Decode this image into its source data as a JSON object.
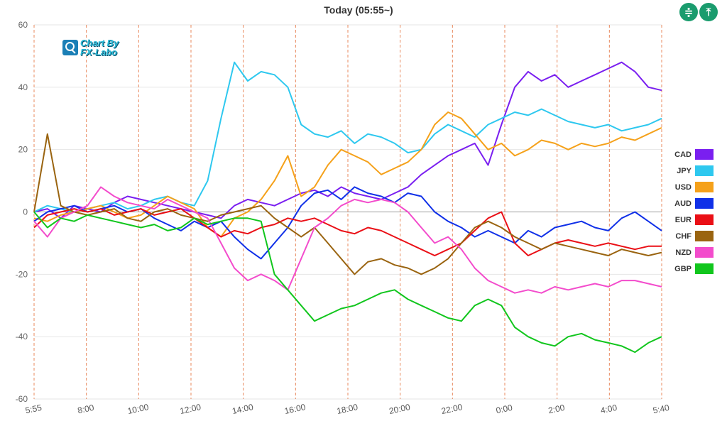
{
  "header": {
    "title": "Today  (05:55~)"
  },
  "logo": {
    "line1": "Chart By",
    "line2": "FX-Labo"
  },
  "toolbar": {
    "compress_icon": "compress-vertical-icon",
    "expand_icon": "expand-vertical-icon",
    "compress_glyph": "≑",
    "expand_glyph": "⤒"
  },
  "chart_data": {
    "type": "line",
    "ylim": [
      -60,
      60
    ],
    "yticks": [
      60,
      40,
      20,
      0,
      -20,
      -40,
      -60
    ],
    "xticks": [
      "5:55",
      "8:00",
      "10:00",
      "12:00",
      "14:00",
      "16:00",
      "18:00",
      "20:00",
      "22:00",
      "0:00",
      "2:00",
      "4:00",
      "5:40"
    ],
    "x": [
      "5:55",
      "6:30",
      "7:00",
      "7:30",
      "8:00",
      "8:30",
      "9:00",
      "9:30",
      "10:00",
      "10:30",
      "11:00",
      "11:30",
      "12:00",
      "12:30",
      "13:00",
      "13:30",
      "14:00",
      "14:30",
      "15:00",
      "15:30",
      "16:00",
      "16:30",
      "17:00",
      "17:30",
      "18:00",
      "18:30",
      "19:00",
      "19:30",
      "20:00",
      "20:30",
      "21:00",
      "21:30",
      "22:00",
      "22:30",
      "23:00",
      "23:30",
      "0:00",
      "0:30",
      "1:00",
      "1:30",
      "2:00",
      "2:30",
      "3:00",
      "3:30",
      "4:00",
      "4:30",
      "5:00",
      "5:40"
    ],
    "grid": "vertical-dashed",
    "legend": "right",
    "series": [
      {
        "name": "CAD",
        "color": "#7a1ff0",
        "values": [
          0,
          1,
          -2,
          2,
          1,
          0,
          3,
          5,
          4,
          3,
          2,
          1,
          0,
          -1,
          -2,
          2,
          4,
          3,
          2,
          4,
          6,
          7,
          5,
          8,
          6,
          5,
          4,
          6,
          8,
          12,
          15,
          18,
          20,
          22,
          15,
          28,
          40,
          45,
          42,
          44,
          40,
          42,
          44,
          46,
          48,
          45,
          40,
          39
        ]
      },
      {
        "name": "JPY",
        "color": "#2ec8ef",
        "values": [
          0,
          2,
          1,
          0,
          1,
          2,
          3,
          1,
          2,
          4,
          5,
          3,
          2,
          10,
          30,
          48,
          42,
          45,
          44,
          40,
          28,
          25,
          24,
          26,
          22,
          25,
          24,
          22,
          19,
          20,
          25,
          28,
          26,
          24,
          28,
          30,
          32,
          31,
          33,
          31,
          29,
          28,
          27,
          28,
          26,
          27,
          28,
          30
        ]
      },
      {
        "name": "USD",
        "color": "#f5a11a",
        "values": [
          -2,
          -3,
          -1,
          0,
          1,
          2,
          0,
          -2,
          -1,
          2,
          5,
          3,
          1,
          -5,
          -8,
          -2,
          0,
          4,
          10,
          18,
          5,
          8,
          15,
          20,
          18,
          16,
          12,
          14,
          16,
          20,
          28,
          32,
          30,
          25,
          20,
          22,
          18,
          20,
          23,
          22,
          20,
          22,
          21,
          22,
          24,
          23,
          25,
          27
        ]
      },
      {
        "name": "AUD",
        "color": "#1030e8",
        "values": [
          -3,
          0,
          1,
          2,
          0,
          1,
          2,
          0,
          1,
          -2,
          -4,
          -6,
          -3,
          -5,
          -3,
          -8,
          -12,
          -15,
          -10,
          -5,
          2,
          6,
          7,
          4,
          8,
          6,
          5,
          3,
          6,
          5,
          0,
          -3,
          -5,
          -8,
          -6,
          -8,
          -10,
          -6,
          -8,
          -5,
          -4,
          -3,
          -5,
          -6,
          -2,
          0,
          -3,
          -6
        ]
      },
      {
        "name": "EUR",
        "color": "#ea0f16",
        "values": [
          -5,
          -1,
          0,
          1,
          0,
          1,
          -1,
          0,
          1,
          -1,
          0,
          1,
          -2,
          -5,
          -8,
          -6,
          -7,
          -5,
          -4,
          -2,
          -3,
          -2,
          -4,
          -6,
          -7,
          -5,
          -6,
          -8,
          -10,
          -12,
          -14,
          -12,
          -10,
          -6,
          -2,
          0,
          -10,
          -14,
          -12,
          -10,
          -9,
          -10,
          -11,
          -10,
          -11,
          -12,
          -11,
          -11
        ]
      },
      {
        "name": "CHF",
        "color": "#9a6410",
        "values": [
          0,
          25,
          2,
          0,
          -1,
          0,
          1,
          -2,
          -3,
          0,
          1,
          -1,
          -2,
          -3,
          -1,
          0,
          1,
          2,
          -2,
          -5,
          -8,
          -5,
          -10,
          -15,
          -20,
          -16,
          -15,
          -17,
          -18,
          -20,
          -18,
          -15,
          -10,
          -5,
          -3,
          -5,
          -8,
          -10,
          -12,
          -10,
          -11,
          -12,
          -13,
          -14,
          -12,
          -13,
          -14,
          -13
        ]
      },
      {
        "name": "NZD",
        "color": "#f34ccc",
        "values": [
          -3,
          -8,
          -2,
          0,
          2,
          8,
          5,
          3,
          2,
          1,
          4,
          2,
          0,
          -2,
          -10,
          -18,
          -22,
          -20,
          -22,
          -25,
          -15,
          -5,
          -2,
          2,
          4,
          3,
          4,
          3,
          0,
          -5,
          -10,
          -8,
          -12,
          -18,
          -22,
          -24,
          -26,
          -25,
          -26,
          -24,
          -25,
          -24,
          -23,
          -24,
          -22,
          -22,
          -23,
          -24
        ]
      },
      {
        "name": "GBP",
        "color": "#11c61d",
        "values": [
          0,
          -5,
          -2,
          -3,
          -1,
          -2,
          -3,
          -4,
          -5,
          -4,
          -6,
          -5,
          -2,
          -4,
          -3,
          -2,
          -2,
          -3,
          -20,
          -25,
          -30,
          -35,
          -33,
          -31,
          -30,
          -28,
          -26,
          -25,
          -28,
          -30,
          -32,
          -34,
          -35,
          -30,
          -28,
          -30,
          -37,
          -40,
          -42,
          -43,
          -40,
          -39,
          -41,
          -42,
          -43,
          -45,
          -42,
          -40
        ]
      }
    ]
  }
}
